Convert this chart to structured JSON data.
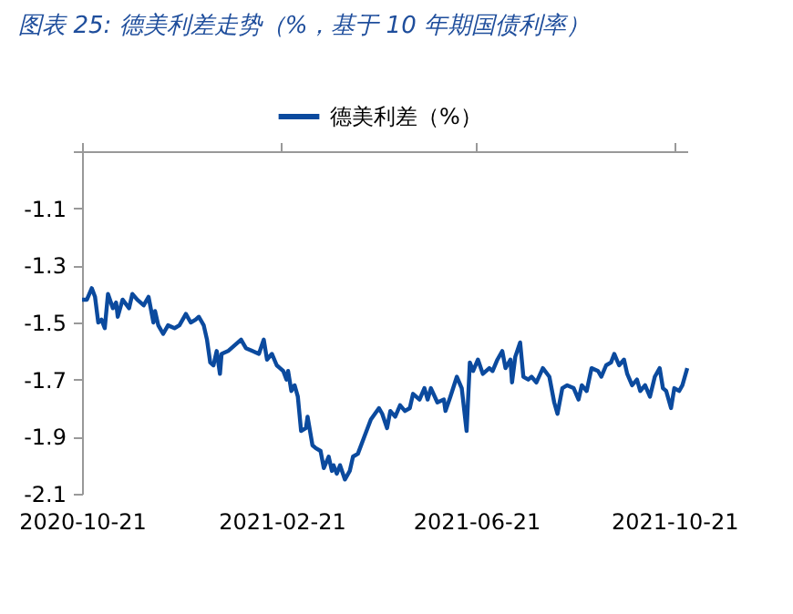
{
  "chart_data": {
    "type": "line",
    "title": "图表 25:  德美利差走势（%，基于 10 年期国债利率）",
    "xlim": [
      "2020-10-21",
      "2021-10-29"
    ],
    "xticks": [
      "2020-10-21",
      "2021-02-21",
      "2021-06-21",
      "2021-10-21"
    ],
    "ylim": [
      -2.1,
      -0.9
    ],
    "yticks": [
      -2.1,
      -1.9,
      -1.7,
      -1.5,
      -1.3,
      -1.1,
      {
        "value": -0.9,
        "label": null
      }
    ],
    "grid": false,
    "legend": "top",
    "marker": "none",
    "line_style": "solid",
    "x": [
      "2020-10-21",
      "2020-10-24",
      "2020-10-27",
      "2020-10-29",
      "2020-10-31",
      "2020-11-02",
      "2020-11-04",
      "2020-11-06",
      "2020-11-09",
      "2020-11-11",
      "2020-11-12",
      "2020-11-15",
      "2020-11-19",
      "2020-11-21",
      "2020-11-24",
      "2020-11-28",
      "2020-12-01",
      "2020-12-04",
      "2020-12-05",
      "2020-12-07",
      "2020-12-10",
      "2020-12-13",
      "2020-12-17",
      "2020-12-20",
      "2020-12-24",
      "2020-12-27",
      "2020-12-30",
      "2021-01-01",
      "2021-01-04",
      "2021-01-06",
      "2021-01-08",
      "2021-01-10",
      "2021-01-12",
      "2021-01-14",
      "2021-01-15",
      "2021-01-19",
      "2021-01-23",
      "2021-01-27",
      "2021-01-30",
      "2021-02-03",
      "2021-02-07",
      "2021-02-10",
      "2021-02-12",
      "2021-02-15",
      "2021-02-18",
      "2021-02-20",
      "2021-02-22",
      "2021-02-24",
      "2021-02-25",
      "2021-02-27",
      "2021-03-01",
      "2021-03-03",
      "2021-03-05",
      "2021-03-08",
      "2021-03-09",
      "2021-03-12",
      "2021-03-14",
      "2021-03-17",
      "2021-03-19",
      "2021-03-22",
      "2021-03-24",
      "2021-03-25",
      "2021-03-27",
      "2021-03-29",
      "2021-04-01",
      "2021-04-04",
      "2021-04-06",
      "2021-04-09",
      "2021-04-13",
      "2021-04-17",
      "2021-04-22",
      "2021-04-24",
      "2021-04-27",
      "2021-04-29",
      "2021-05-02",
      "2021-05-05",
      "2021-05-08",
      "2021-05-11",
      "2021-05-13",
      "2021-05-17",
      "2021-05-20",
      "2021-05-22",
      "2021-05-24",
      "2021-05-28",
      "2021-06-01",
      "2021-06-02",
      "2021-06-05",
      "2021-06-09",
      "2021-06-12",
      "2021-06-15",
      "2021-06-17",
      "2021-06-19",
      "2021-06-22",
      "2021-06-25",
      "2021-06-29",
      "2021-07-01",
      "2021-07-04",
      "2021-07-07",
      "2021-07-09",
      "2021-07-12",
      "2021-07-13",
      "2021-07-15",
      "2021-07-18",
      "2021-07-20",
      "2021-07-23",
      "2021-07-25",
      "2021-07-28",
      "2021-08-01",
      "2021-08-05",
      "2021-08-08",
      "2021-08-10",
      "2021-08-13",
      "2021-08-16",
      "2021-08-20",
      "2021-08-23",
      "2021-08-25",
      "2021-08-28",
      "2021-08-31",
      "2021-09-04",
      "2021-09-06",
      "2021-09-09",
      "2021-09-12",
      "2021-09-14",
      "2021-09-17",
      "2021-09-20",
      "2021-09-22",
      "2021-09-25",
      "2021-09-28",
      "2021-09-30",
      "2021-10-03",
      "2021-10-06",
      "2021-10-09",
      "2021-10-12",
      "2021-10-14",
      "2021-10-16",
      "2021-10-19",
      "2021-10-21",
      "2021-10-24",
      "2021-10-26",
      "2021-10-29"
    ],
    "series": [
      {
        "name": "德美利差（%）",
        "color": "#0b4a9e",
        "values": [
          -1.42,
          -1.42,
          -1.38,
          -1.41,
          -1.5,
          -1.49,
          -1.52,
          -1.4,
          -1.45,
          -1.43,
          -1.48,
          -1.42,
          -1.45,
          -1.4,
          -1.42,
          -1.44,
          -1.41,
          -1.5,
          -1.46,
          -1.51,
          -1.54,
          -1.51,
          -1.52,
          -1.51,
          -1.47,
          -1.5,
          -1.49,
          -1.48,
          -1.51,
          -1.56,
          -1.64,
          -1.65,
          -1.6,
          -1.68,
          -1.61,
          -1.6,
          -1.58,
          -1.56,
          -1.59,
          -1.6,
          -1.61,
          -1.56,
          -1.63,
          -1.61,
          -1.65,
          -1.66,
          -1.67,
          -1.7,
          -1.67,
          -1.74,
          -1.72,
          -1.76,
          -1.88,
          -1.87,
          -1.83,
          -1.93,
          -1.94,
          -1.95,
          -2.01,
          -1.97,
          -2.02,
          -2.0,
          -2.03,
          -2.0,
          -2.05,
          -2.02,
          -1.97,
          -1.96,
          -1.9,
          -1.84,
          -1.8,
          -1.82,
          -1.87,
          -1.81,
          -1.83,
          -1.79,
          -1.81,
          -1.8,
          -1.75,
          -1.77,
          -1.73,
          -1.77,
          -1.73,
          -1.78,
          -1.77,
          -1.81,
          -1.76,
          -1.69,
          -1.73,
          -1.88,
          -1.64,
          -1.67,
          -1.63,
          -1.68,
          -1.66,
          -1.67,
          -1.63,
          -1.6,
          -1.66,
          -1.63,
          -1.71,
          -1.62,
          -1.57,
          -1.69,
          -1.7,
          -1.69,
          -1.71,
          -1.66,
          -1.69,
          -1.78,
          -1.82,
          -1.73,
          -1.72,
          -1.73,
          -1.77,
          -1.72,
          -1.74,
          -1.66,
          -1.67,
          -1.69,
          -1.65,
          -1.64,
          -1.61,
          -1.65,
          -1.63,
          -1.68,
          -1.72,
          -1.7,
          -1.74,
          -1.72,
          -1.76,
          -1.69,
          -1.66,
          -1.73,
          -1.74,
          -1.8,
          -1.73,
          -1.74,
          -1.72,
          -1.66
        ]
      }
    ]
  }
}
